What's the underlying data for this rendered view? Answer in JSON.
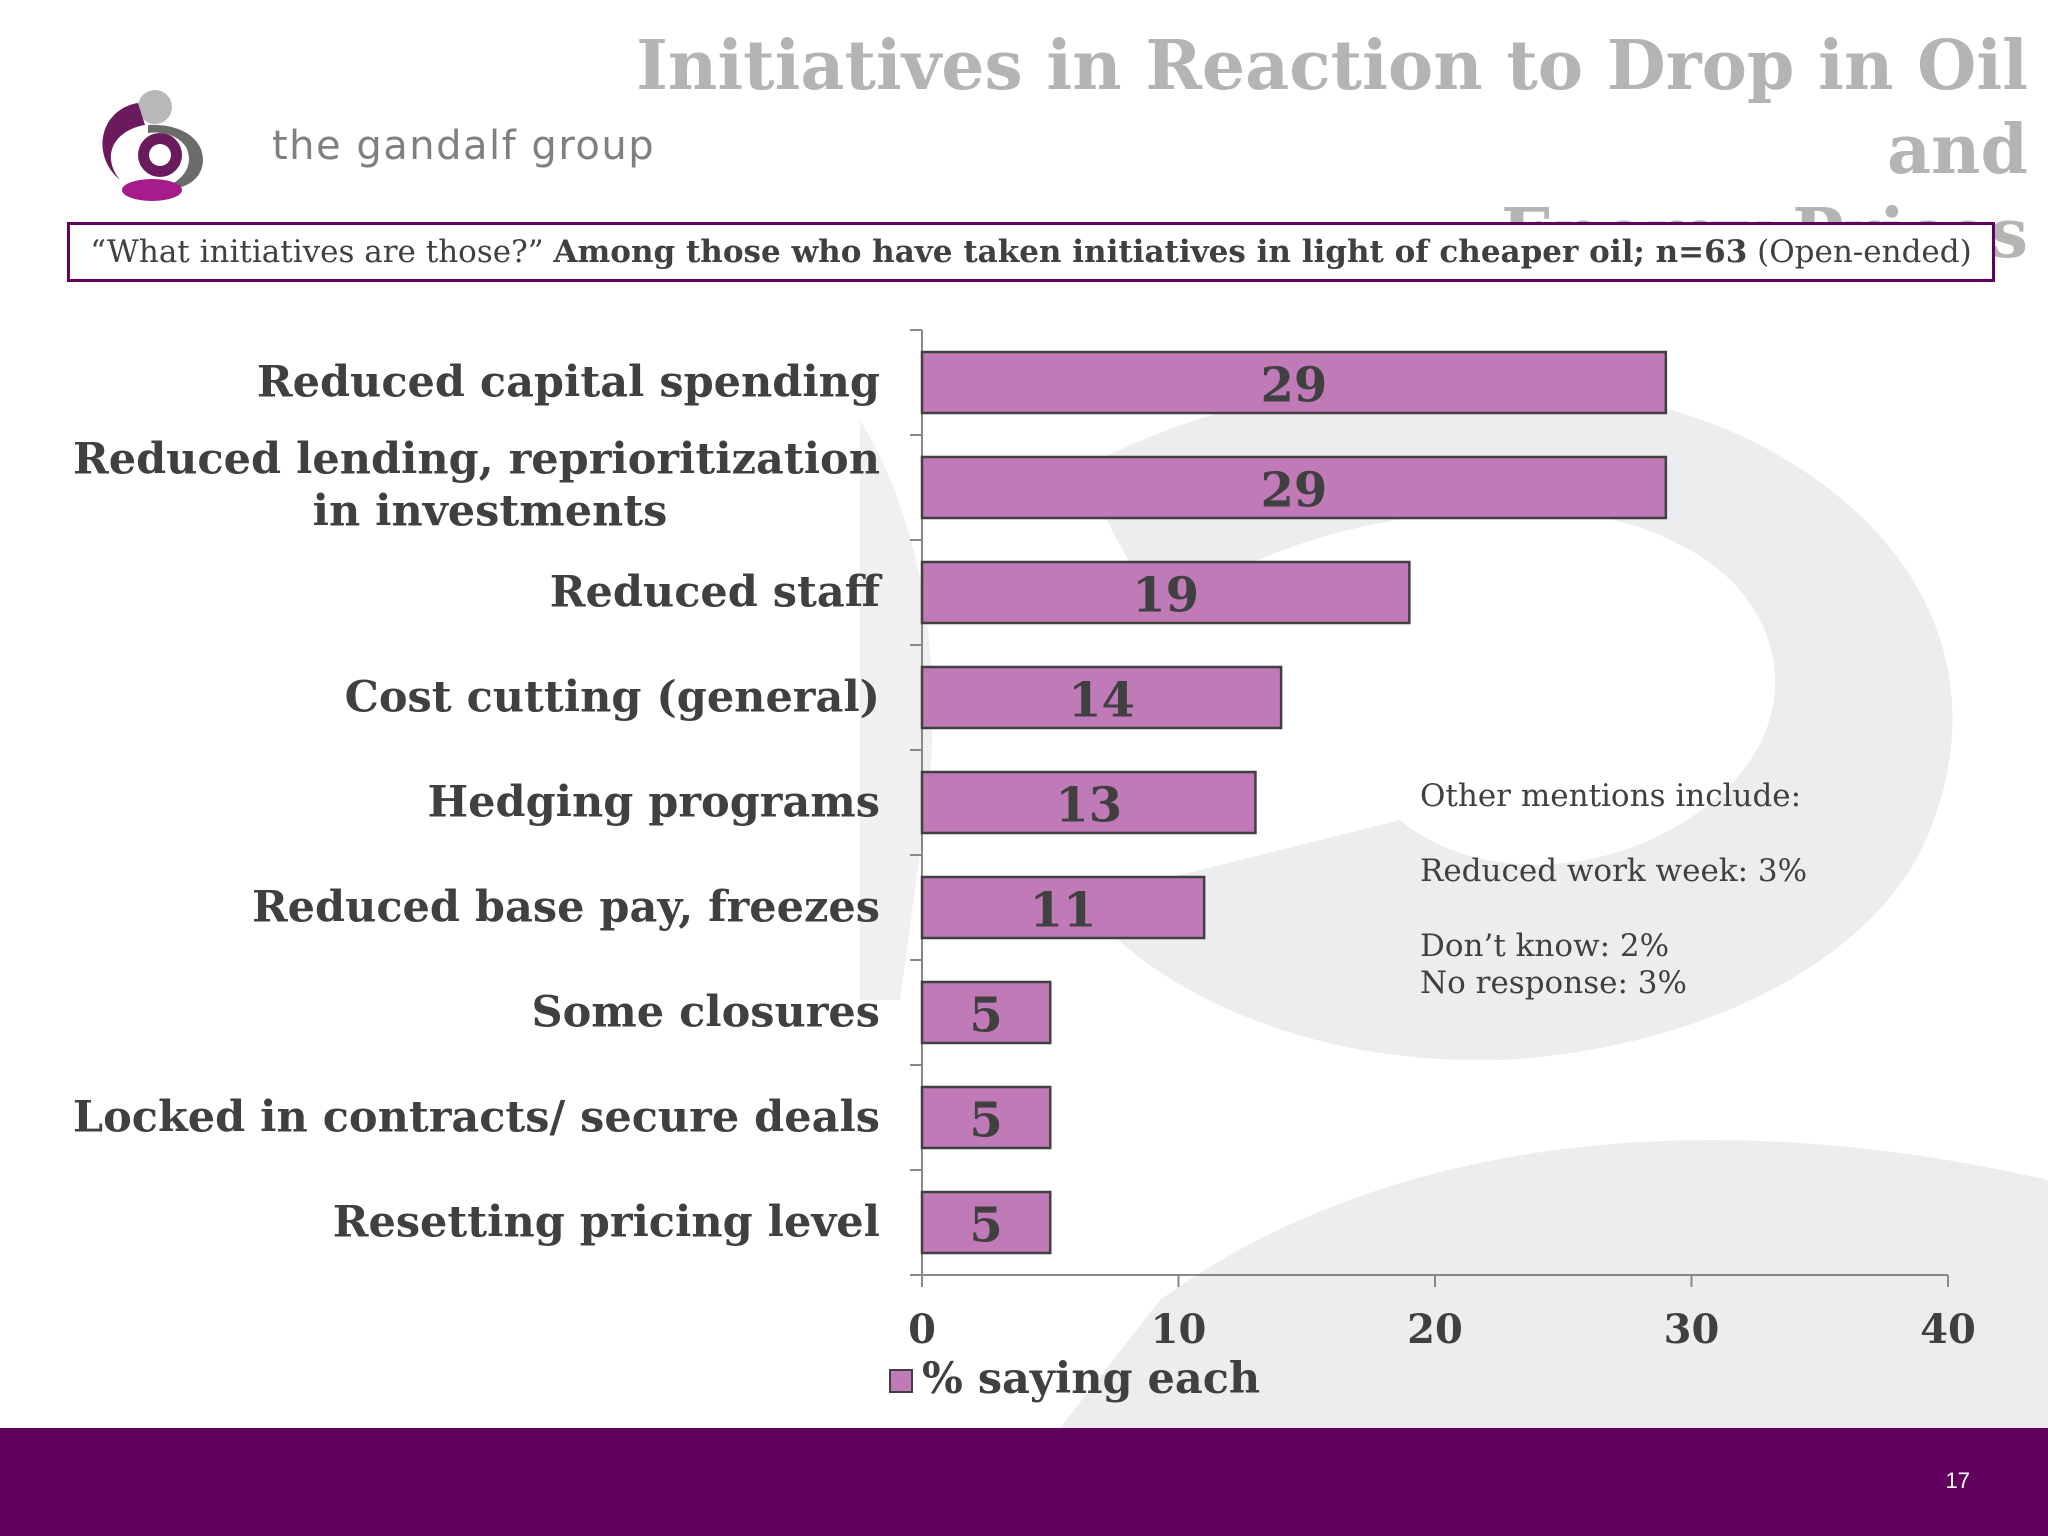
{
  "header": {
    "title_line1": "Initiatives in Reaction to Drop in Oil and",
    "title_line2": "Energy Prices",
    "logo_text": "the gandalf group"
  },
  "question": {
    "quote": "“What initiatives are those?”",
    "bold": "Among those who have taken initiatives in light of cheaper oil; n=63",
    "suffix": "(Open-ended)"
  },
  "notes": {
    "heading": "Other mentions include:",
    "line1": "Reduced work week: 3%",
    "line2": "Don’t know: 2%",
    "line3": "No response: 3%"
  },
  "footer": {
    "page_number": "17"
  },
  "colors": {
    "bar_fill": "#c07ab8",
    "bar_stroke": "#404040",
    "footer": "#62005e",
    "title": "#b4b4b4",
    "text": "#404040"
  },
  "chart_data": {
    "type": "bar",
    "orientation": "horizontal",
    "categories": [
      [
        "Reduced capital spending"
      ],
      [
        "Reduced lending, reprioritization",
        "in investments"
      ],
      [
        "Reduced staff"
      ],
      [
        "Cost cutting (general)"
      ],
      [
        "Hedging programs"
      ],
      [
        "Reduced base pay, freezes"
      ],
      [
        "Some closures"
      ],
      [
        "Locked in contracts/ secure deals"
      ],
      [
        "Resetting pricing level"
      ]
    ],
    "series": [
      {
        "name": "% saying each",
        "values": [
          29,
          29,
          19,
          14,
          13,
          11,
          5,
          5,
          5
        ]
      }
    ],
    "data_labels": [
      "29",
      "29",
      "19",
      "14",
      "13",
      "11",
      "5",
      "5",
      "5"
    ],
    "xlim": [
      0,
      40
    ],
    "xticks": [
      0,
      10,
      20,
      30,
      40
    ],
    "xticklabels": [
      "0",
      "10",
      "20",
      "30",
      "40"
    ],
    "legend": {
      "label": "% saying each",
      "position": "bottom"
    },
    "grid": false
  }
}
